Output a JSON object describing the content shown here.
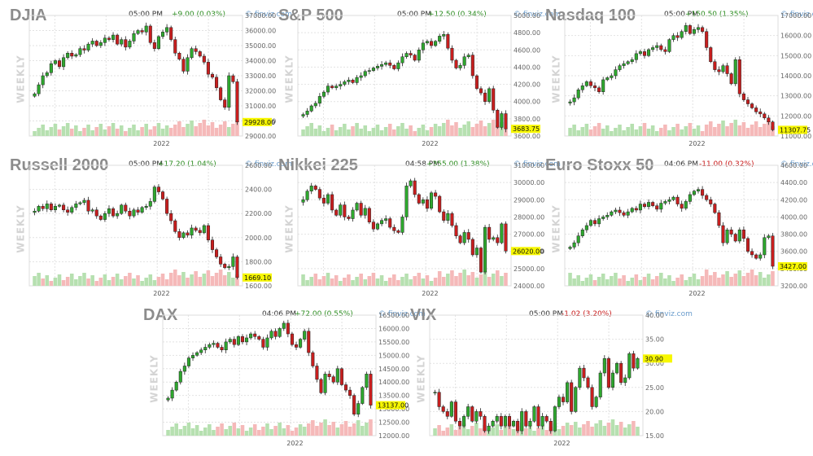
{
  "colors": {
    "up": "#2ea82e",
    "down": "#c81e1e",
    "vol_up": "#b6e0b0",
    "vol_down": "#f5b9b9",
    "grid": "#e2e2e2",
    "last_bg": "#f7f700"
  },
  "chart_data": [
    {
      "type": "candlestick",
      "title": "DJIA",
      "time": "05:00 PM",
      "change": "+9.00 (0.03%)",
      "direction": "up",
      "source": "finviz.com",
      "period_label": "WEEKLY",
      "x_tick": "2022",
      "last_value": "29928.00",
      "ylim": [
        29000,
        37000
      ],
      "y_ticks": [
        "37000.00",
        "36000.00",
        "35000.00",
        "34000.00",
        "33000.00",
        "32000.00",
        "31000.00",
        "30000.00",
        "29000.00"
      ],
      "y_tick_values": [
        37000,
        36000,
        35000,
        34000,
        33000,
        32000,
        31000,
        30000,
        29000
      ],
      "closes": [
        31800,
        32400,
        33000,
        33200,
        33800,
        34000,
        33600,
        34200,
        34500,
        34300,
        34400,
        34800,
        34700,
        35100,
        35300,
        35000,
        35200,
        35500,
        35400,
        35700,
        35100,
        35400,
        34900,
        35300,
        35800,
        36000,
        35900,
        36300,
        35200,
        34800,
        35600,
        35900,
        36200,
        35400,
        34500,
        34100,
        33300,
        34200,
        34800,
        34600,
        34300,
        33900,
        33100,
        32900,
        32200,
        31400,
        30900,
        33000,
        32600,
        29928
      ]
    },
    {
      "type": "candlestick",
      "title": "S&P 500",
      "time": "05:00 PM",
      "change": "+12.50 (0.34%)",
      "direction": "up",
      "source": "finviz.com",
      "period_label": "WEEKLY",
      "x_tick": "2022",
      "last_value": "3683.75",
      "ylim": [
        3600,
        5000
      ],
      "y_ticks": [
        "5000.00",
        "4800.00",
        "4600.00",
        "4400.00",
        "4200.00",
        "4000.00",
        "3800.00",
        "3600.00"
      ],
      "y_tick_values": [
        5000,
        4800,
        4600,
        4400,
        4200,
        4000,
        3800,
        3600
      ],
      "closes": [
        3850,
        3890,
        3950,
        3980,
        4060,
        4110,
        4180,
        4160,
        4180,
        4200,
        4230,
        4250,
        4220,
        4280,
        4300,
        4350,
        4360,
        4390,
        4410,
        4430,
        4450,
        4420,
        4380,
        4450,
        4520,
        4560,
        4540,
        4480,
        4600,
        4680,
        4700,
        4650,
        4700,
        4760,
        4780,
        4620,
        4480,
        4390,
        4420,
        4520,
        4540,
        4300,
        4150,
        4100,
        4000,
        4150,
        3900,
        3700,
        3860,
        3683
      ]
    },
    {
      "type": "candlestick",
      "title": "Nasdaq 100",
      "time": "05:00 PM",
      "change": "+150.50 (1.35%)",
      "direction": "up",
      "source": "finviz.com",
      "period_label": "WEEKLY",
      "x_tick": "2022",
      "last_value": "11307.75",
      "ylim": [
        11000,
        17000
      ],
      "y_ticks": [
        "17000.00",
        "16000.00",
        "15000.00",
        "14000.00",
        "13000.00",
        "12000.00",
        "11000.00"
      ],
      "y_tick_values": [
        17000,
        16000,
        15000,
        14000,
        13000,
        12000,
        11000
      ],
      "closes": [
        12700,
        12900,
        13300,
        13500,
        13700,
        13500,
        13400,
        13200,
        13800,
        13900,
        14000,
        14300,
        14500,
        14600,
        14700,
        14800,
        15100,
        15200,
        15000,
        15300,
        15400,
        15500,
        15300,
        15200,
        15800,
        16000,
        15900,
        16200,
        16500,
        16100,
        16300,
        16400,
        16200,
        15400,
        14700,
        14300,
        14200,
        14500,
        14100,
        13600,
        14800,
        13100,
        12800,
        12600,
        12400,
        12200,
        12100,
        11900,
        11700,
        11307
      ]
    },
    {
      "type": "candlestick",
      "title": "Russell 2000",
      "time": "05:00 PM",
      "change": "+17.20 (1.04%)",
      "direction": "up",
      "source": "finviz.com",
      "period_label": "WEEKLY",
      "x_tick": "2022",
      "last_value": "1669.10",
      "ylim": [
        1600,
        2600
      ],
      "y_ticks": [
        "2600.00",
        "2400.00",
        "2200.00",
        "2000.00",
        "1800.00",
        "1600.00"
      ],
      "y_tick_values": [
        2600,
        2400,
        2200,
        2000,
        1800,
        1600
      ],
      "closes": [
        2220,
        2260,
        2240,
        2280,
        2230,
        2260,
        2270,
        2230,
        2210,
        2250,
        2280,
        2290,
        2310,
        2220,
        2230,
        2180,
        2150,
        2200,
        2240,
        2180,
        2200,
        2270,
        2220,
        2180,
        2230,
        2210,
        2250,
        2260,
        2300,
        2420,
        2380,
        2320,
        2200,
        2140,
        2050,
        2000,
        2040,
        2020,
        2080,
        2060,
        2040,
        2100,
        1980,
        1900,
        1840,
        1780,
        1750,
        1760,
        1840,
        1669
      ]
    },
    {
      "type": "candlestick",
      "title": "Nikkei 225",
      "time": "04:58 PM",
      "change": "+355.00 (1.38%)",
      "direction": "up",
      "source": "finviz.com",
      "period_label": "WEEKLY",
      "x_tick": "2022",
      "last_value": "26020.00",
      "ylim": [
        24000,
        31000
      ],
      "y_ticks": [
        "31000.00",
        "30000.00",
        "29000.00",
        "28000.00",
        "27000.00",
        "26000.00",
        "25000.00",
        "24000.00"
      ],
      "y_tick_values": [
        31000,
        30000,
        29000,
        28000,
        27000,
        26000,
        25000,
        24000
      ],
      "closes": [
        29000,
        29500,
        29800,
        29600,
        29100,
        28800,
        29300,
        28400,
        28100,
        28700,
        28000,
        27900,
        28400,
        28800,
        28100,
        28500,
        27700,
        27300,
        27600,
        27800,
        27900,
        27400,
        27200,
        27100,
        28000,
        29800,
        30100,
        29300,
        28800,
        29000,
        28500,
        29400,
        29200,
        28300,
        27800,
        28200,
        27500,
        26900,
        26500,
        27100,
        26700,
        25800,
        26200,
        24800,
        27400,
        26700,
        26800,
        26500,
        27600,
        26020
      ]
    },
    {
      "type": "candlestick",
      "title": "Euro Stoxx 50",
      "time": "04:06 PM",
      "change": "-11.00 (0.32%)",
      "direction": "down",
      "source": "finviz.com",
      "period_label": "WEEKLY",
      "x_tick": "2022",
      "last_value": "3427.00",
      "ylim": [
        3200,
        4600
      ],
      "y_ticks": [
        "4600.00",
        "4400.00",
        "4200.00",
        "4000.00",
        "3800.00",
        "3600.00",
        "3400.00",
        "3200.00"
      ],
      "y_tick_values": [
        4600,
        4400,
        4200,
        4000,
        3800,
        3600,
        3400,
        3200
      ],
      "closes": [
        3650,
        3700,
        3780,
        3850,
        3900,
        3960,
        3920,
        3980,
        4000,
        4020,
        4060,
        4080,
        4050,
        4020,
        4060,
        4100,
        4080,
        4150,
        4120,
        4170,
        4130,
        4090,
        4160,
        4180,
        4200,
        4230,
        4150,
        4100,
        4180,
        4260,
        4300,
        4320,
        4250,
        4200,
        4150,
        4050,
        3900,
        3700,
        3850,
        3800,
        3720,
        3850,
        3750,
        3600,
        3560,
        3520,
        3560,
        3760,
        3780,
        3427
      ]
    },
    {
      "type": "candlestick",
      "title": "DAX",
      "time": "04:06 PM",
      "change": "+72.00 (0.55%)",
      "direction": "up",
      "source": "finviz.com",
      "period_label": "WEEKLY",
      "x_tick": "2022",
      "last_value": "13137.00",
      "ylim": [
        12000,
        16500
      ],
      "y_ticks": [
        "16500.00",
        "16000.00",
        "15500.00",
        "15000.00",
        "14500.00",
        "14000.00",
        "13500.00",
        "13000.00",
        "12500.00",
        "12000.00"
      ],
      "y_tick_values": [
        16500,
        16000,
        15500,
        15000,
        14500,
        14000,
        13500,
        13000,
        12500,
        12000
      ],
      "closes": [
        13400,
        13700,
        14000,
        14400,
        14600,
        14900,
        15000,
        15100,
        15200,
        15300,
        15400,
        15450,
        15300,
        15200,
        15500,
        15600,
        15400,
        15700,
        15500,
        15650,
        15800,
        15700,
        15600,
        15300,
        15650,
        15900,
        15700,
        16000,
        16200,
        15800,
        15400,
        15300,
        15600,
        15900,
        15100,
        14600,
        14100,
        13600,
        14300,
        14200,
        14000,
        14500,
        13900,
        13700,
        13500,
        12800,
        13200,
        13800,
        14300,
        13137
      ]
    },
    {
      "type": "candlestick",
      "title": "VIX",
      "time": "05:00 PM",
      "change": "-1.02 (3.20%)",
      "direction": "down",
      "source": "finviz.com",
      "period_label": "WEEKLY",
      "x_tick": "2022",
      "last_value": "30.90",
      "ylim": [
        15,
        40
      ],
      "y_ticks": [
        "40.00",
        "35.00",
        "30.00",
        "25.00",
        "20.00",
        "15.00"
      ],
      "y_tick_values": [
        40,
        35,
        30,
        25,
        20,
        15
      ],
      "closes": [
        24,
        21,
        20,
        19,
        22,
        18,
        17,
        19,
        21,
        18,
        20,
        19,
        16,
        17,
        18,
        19,
        17,
        19,
        17,
        18,
        16,
        20,
        17,
        18,
        21,
        17,
        19,
        18,
        16,
        21,
        23,
        22,
        26,
        20,
        25,
        29,
        27,
        25,
        21,
        23,
        28,
        31,
        25,
        28,
        30,
        26,
        27,
        32,
        29,
        31
      ]
    }
  ]
}
